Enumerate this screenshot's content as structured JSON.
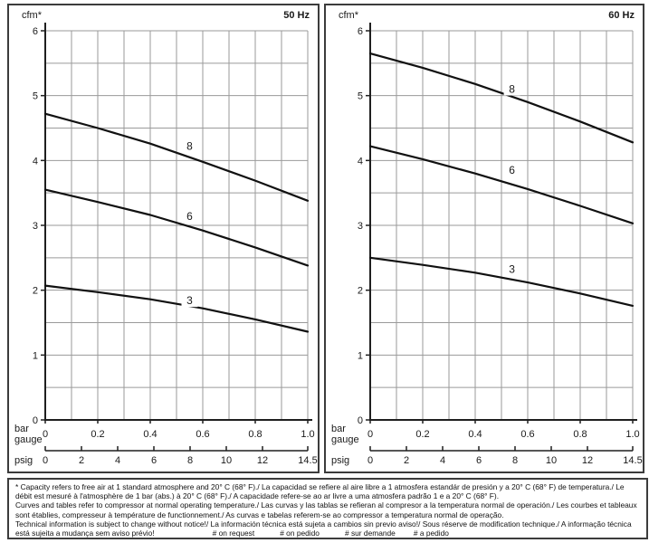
{
  "colors": {
    "grid": "#9a9a9a",
    "axis": "#1f1f1f",
    "curve": "#111111",
    "text": "#1a1a1a",
    "border": "#3c3c3c",
    "background": "#ffffff"
  },
  "chart_data": [
    {
      "type": "line",
      "title": "50 Hz",
      "ylabel": "cfm*",
      "xlabel_line1": "bar",
      "xlabel_line2": "gauge",
      "xlabel_secondary": "psig",
      "xlim": [
        0,
        1.0
      ],
      "ylim": [
        0,
        6
      ],
      "x_minor_step": 0.1,
      "y_minor_step": 0.5,
      "grid": true,
      "x_ticks": [
        0,
        0.2,
        0.4,
        0.6,
        0.8,
        1.0
      ],
      "x_tick_labels": [
        "0",
        "0.2",
        "0.4",
        "0.6",
        "0.8",
        "1.0"
      ],
      "y_ticks": [
        0,
        1,
        2,
        3,
        4,
        5,
        6
      ],
      "y_tick_labels": [
        "0",
        "1",
        "2",
        "3",
        "4",
        "5",
        "6"
      ],
      "psig_max": 14.5,
      "psig_ticks": [
        0,
        2,
        4,
        6,
        8,
        10,
        12,
        14.5
      ],
      "psig_tick_labels": [
        "0",
        "2",
        "4",
        "6",
        "8",
        "10",
        "12",
        "14.5"
      ],
      "series": [
        {
          "name": "8",
          "x": [
            0,
            0.2,
            0.4,
            0.6,
            0.8,
            1.0
          ],
          "y": [
            4.72,
            4.5,
            4.26,
            3.98,
            3.69,
            3.38
          ],
          "label_x": 0.55,
          "label_y": 4.22
        },
        {
          "name": "6",
          "x": [
            0,
            0.2,
            0.4,
            0.6,
            0.8,
            1.0
          ],
          "y": [
            3.55,
            3.36,
            3.16,
            2.92,
            2.66,
            2.38
          ],
          "label_x": 0.55,
          "label_y": 3.14
        },
        {
          "name": "3",
          "x": [
            0,
            0.2,
            0.4,
            0.6,
            0.8,
            1.0
          ],
          "y": [
            2.07,
            1.97,
            1.86,
            1.72,
            1.55,
            1.36
          ],
          "label_x": 0.55,
          "label_y": 1.84
        }
      ]
    },
    {
      "type": "line",
      "title": "60 Hz",
      "ylabel": "cfm*",
      "xlabel_line1": "bar",
      "xlabel_line2": "gauge",
      "xlabel_secondary": "psig",
      "xlim": [
        0,
        1.0
      ],
      "ylim": [
        0,
        6
      ],
      "x_minor_step": 0.1,
      "y_minor_step": 0.5,
      "grid": true,
      "x_ticks": [
        0,
        0.2,
        0.4,
        0.6,
        0.8,
        1.0
      ],
      "x_tick_labels": [
        "0",
        "0.2",
        "0.4",
        "0.6",
        "0.8",
        "1.0"
      ],
      "y_ticks": [
        0,
        1,
        2,
        3,
        4,
        5,
        6
      ],
      "y_tick_labels": [
        "0",
        "1",
        "2",
        "3",
        "4",
        "5",
        "6"
      ],
      "psig_max": 14.5,
      "psig_ticks": [
        0,
        2,
        4,
        6,
        8,
        10,
        12,
        14.5
      ],
      "psig_tick_labels": [
        "0",
        "2",
        "4",
        "6",
        "8",
        "10",
        "12",
        "14.5"
      ],
      "series": [
        {
          "name": "8",
          "x": [
            0,
            0.2,
            0.4,
            0.6,
            0.8,
            1.0
          ],
          "y": [
            5.65,
            5.43,
            5.18,
            4.9,
            4.6,
            4.28
          ],
          "label_x": 0.54,
          "label_y": 5.1
        },
        {
          "name": "6",
          "x": [
            0,
            0.2,
            0.4,
            0.6,
            0.8,
            1.0
          ],
          "y": [
            4.22,
            4.02,
            3.8,
            3.56,
            3.3,
            3.03
          ],
          "label_x": 0.54,
          "label_y": 3.85
        },
        {
          "name": "3",
          "x": [
            0,
            0.2,
            0.4,
            0.6,
            0.8,
            1.0
          ],
          "y": [
            2.5,
            2.39,
            2.27,
            2.12,
            1.95,
            1.76
          ],
          "label_x": 0.54,
          "label_y": 2.32
        }
      ]
    }
  ],
  "footnote": {
    "lines": [
      "* Capacity refers to free air at 1 standard atmosphere and 20° C (68° F)./ La capacidad se refiere al aire libre a 1 atmosfera estandár de presión y a 20° C (68° F) de temperatura./ Le",
      "débit est mesuré à l'atmosphère de 1 bar (abs.) à 20° C (68° F)./ A capacidade refere-se ao ar livre a uma atmosfera padrão 1 e a 20° C (68° F).",
      "Curves and tables refer to compressor at normal operating temperature./ Las curvas y las tablas se refieran al compresor a la temperatura normal de operación./ Les courbes et tableaux",
      "sont établies, compresseur à température de functionnement./ As curvas e tabelas referem-se ao compressor a temperatura normal de operação.",
      "Technical information is subject to change without notice!/ La información técnica está sujeta a cambios sin previo aviso!/ Sous réserve de modification technique./ A informação técnica",
      "está sujeita a mudança sem aviso prévio!"
    ],
    "request_items": [
      "# on request",
      "# on pedido",
      "# sur demande",
      "# a pedido"
    ]
  }
}
